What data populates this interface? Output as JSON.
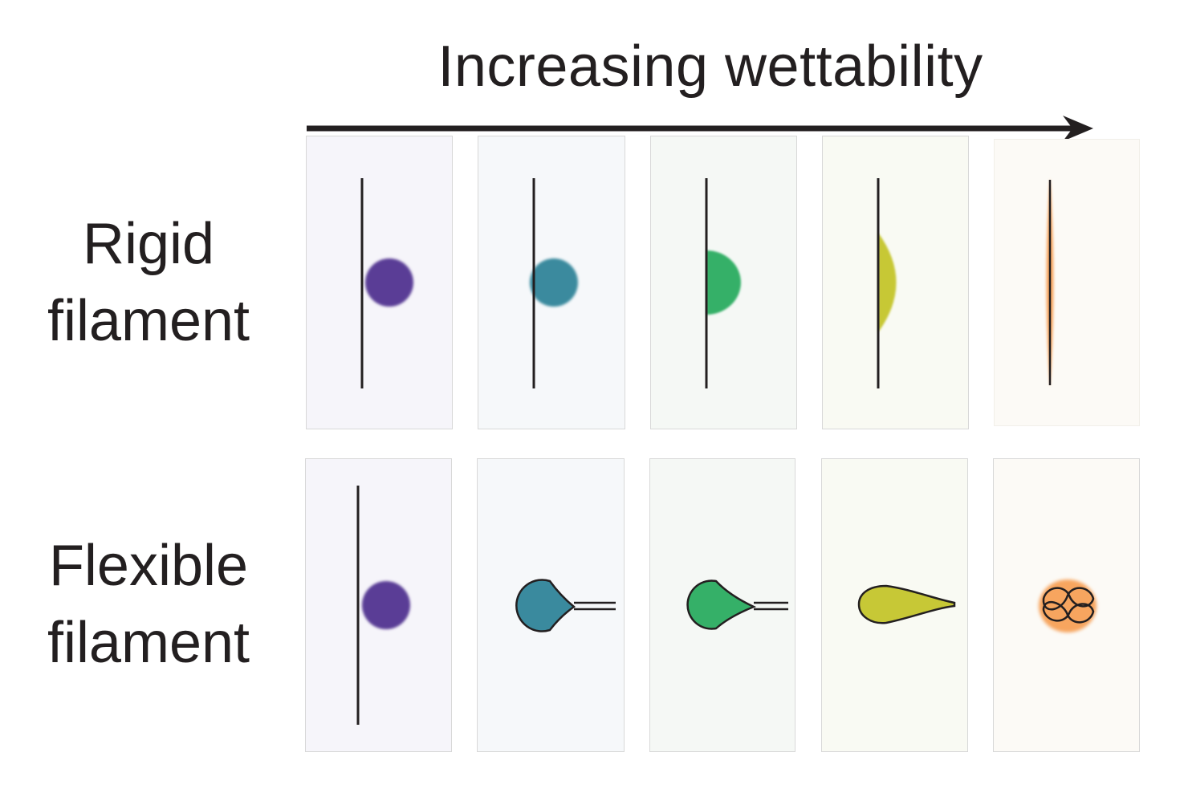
{
  "title": "Increasing wettability",
  "rows": [
    {
      "id": "rigid",
      "label_line1": "Rigid",
      "label_line2": "filament"
    },
    {
      "id": "flexible",
      "label_line1": "Flexible",
      "label_line2": "filament"
    }
  ],
  "colors": {
    "text": "#231f20",
    "arrow": "#231f20",
    "filament": "#231f20",
    "droplets": [
      "#5a3d96",
      "#3a8a9e",
      "#35b068",
      "#c7c836",
      "#f7a55f"
    ],
    "panel_backgrounds": [
      "#f6f5fa",
      "#f6f8fa",
      "#f5f8f5",
      "#f9faf3",
      "#fcfaf6"
    ]
  },
  "droplet_states": {
    "rigid": [
      "sphere-detached",
      "sphere-attached",
      "hemisphere",
      "spread-cap",
      "thin-film"
    ],
    "flexible": [
      "sphere-detached",
      "teardrop-coil",
      "teardrop-coil",
      "elongated-teardrop",
      "fully-wound-coil"
    ]
  }
}
